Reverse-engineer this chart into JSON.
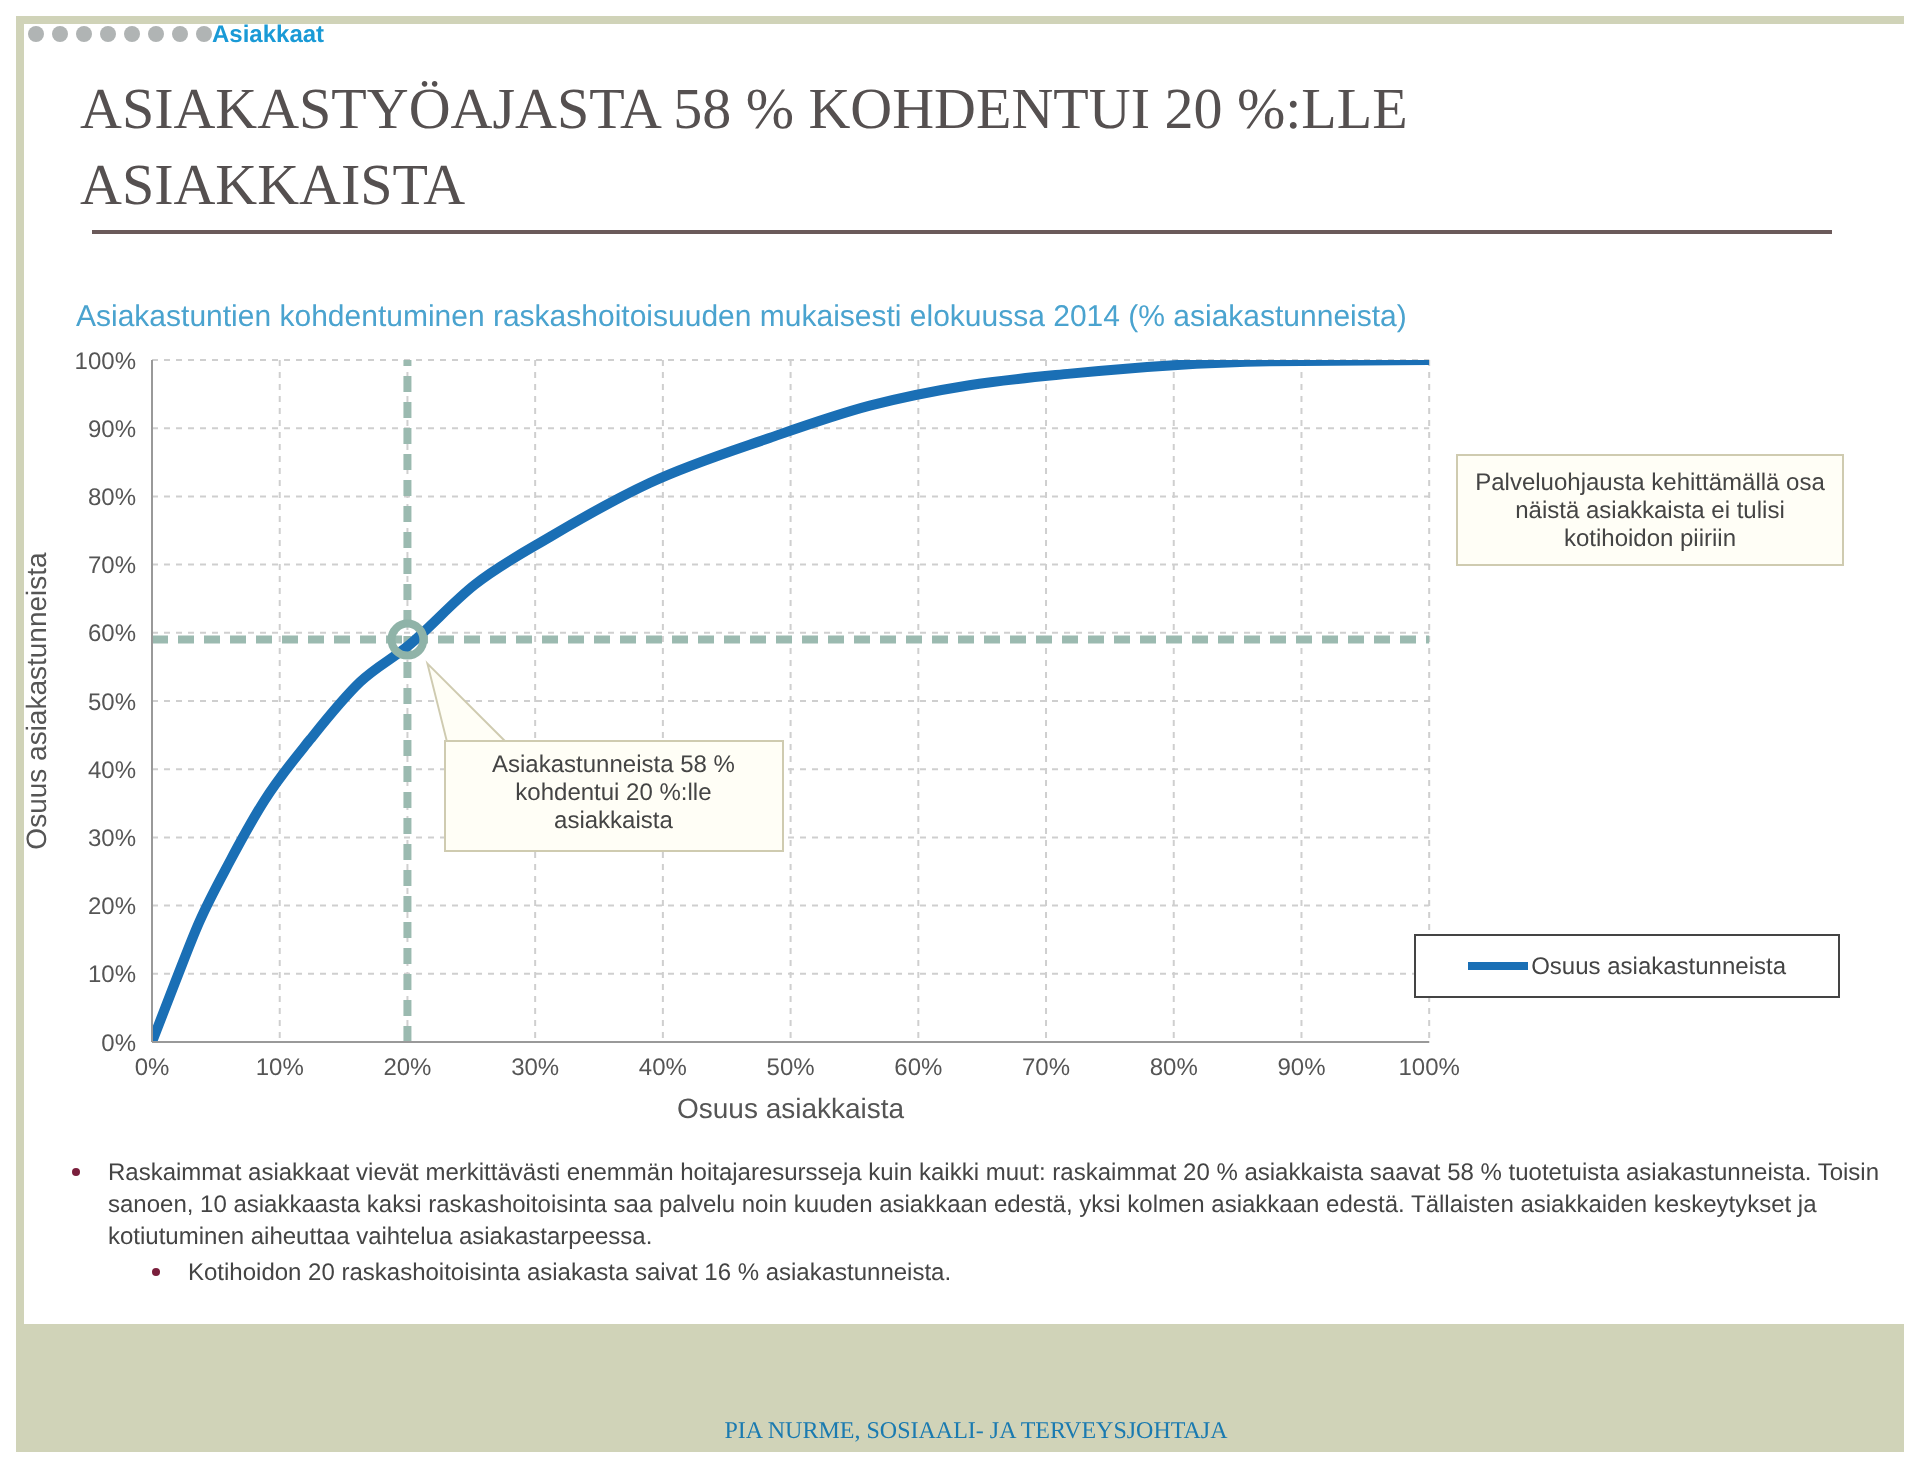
{
  "chart_data": {
    "type": "line",
    "title": "ASIAKASTYÖAJASTA 58 % KOHDENTUI 20 %:LLE ASIAKKAISTA",
    "subtitle": "Asiakastuntien kohdentuminen raskashoitoisuuden mukaisesti elokuussa 2014 (% asiakastunneista)",
    "xlabel": "Osuus asiakkaista",
    "ylabel": "Osuus asiakastunneista",
    "x": [
      0,
      1.8,
      3.7,
      6.1,
      8.8,
      12.4,
      16.3,
      20,
      25.3,
      31.2,
      39,
      48.4,
      56.2,
      64,
      71.9,
      79.7,
      87.5,
      100
    ],
    "series": [
      {
        "name": "Osuus asiakastunneista",
        "color": "#1a6fb5",
        "values": [
          0,
          8.7,
          17.6,
          26.5,
          35.4,
          44.4,
          52.8,
          58,
          67.1,
          74.1,
          82,
          88.6,
          93.3,
          96.3,
          98,
          99.2,
          99.8,
          100
        ]
      }
    ],
    "xlim": [
      0,
      100
    ],
    "ylim": [
      0,
      100
    ],
    "xticks": [
      {
        "value": 0,
        "label": "0%"
      },
      {
        "value": 10,
        "label": "10%"
      },
      {
        "value": 20,
        "label": "20%"
      },
      {
        "value": 30,
        "label": "30%"
      },
      {
        "value": 40,
        "label": "40%"
      },
      {
        "value": 50,
        "label": "50%"
      },
      {
        "value": 60,
        "label": "60%"
      },
      {
        "value": 70,
        "label": "70%"
      },
      {
        "value": 80,
        "label": "80%"
      },
      {
        "value": 90,
        "label": "90%"
      },
      {
        "value": 100,
        "label": "100%"
      }
    ],
    "yticks": [
      {
        "value": 0,
        "label": "0%"
      },
      {
        "value": 10,
        "label": "10%"
      },
      {
        "value": 20,
        "label": "20%"
      },
      {
        "value": 30,
        "label": "30%"
      },
      {
        "value": 40,
        "label": "40%"
      },
      {
        "value": 50,
        "label": "50%"
      },
      {
        "value": 60,
        "label": "60%"
      },
      {
        "value": 70,
        "label": "70%"
      },
      {
        "value": 80,
        "label": "80%"
      },
      {
        "value": 90,
        "label": "90%"
      },
      {
        "value": 100,
        "label": "100%"
      }
    ],
    "ref_lines": [
      {
        "axis": "x",
        "value": 20,
        "color": "#9bbab0",
        "line_style": "dashed"
      },
      {
        "axis": "y",
        "value": 59,
        "color": "#9bbab0",
        "line_style": "dashed"
      }
    ],
    "grid": true,
    "legend": "bottom right",
    "marker": "none",
    "line_style": "solid",
    "annotations": [
      "Asiakkaat",
      "Asiakastunneista 58 % kohdentui 20 %:lle asiakkaista",
      "Palveluohjausta kehittämällä osa näistä asiakkaista ei tulisi kotihoidon piiriin",
      "Raskaimmat asiakkaat vievät merkittävästi enemmän hoitajaresursseja kuin kaikki muut: raskaimmat 20 % asiakkaista saavat 58 % tuotetuista asiakastunneista. Toisin sanoen, 10 asiakkaasta kaksi raskashoitoisinta saa palvelu noin kuuden asiakkaan edestä, yksi kolmen asiakkaan edestä. Tällaisten asiakkaiden keskeytykset ja kotiutuminen aiheuttaa vaihtelua asiakastarpeessa.",
      "Kotihoidon 20 raskashoitoisinta asiakasta saivat 16 % asiakastunneista.",
      "PIA NURME, SOSIAALI- JA TERVEYSJOHTAJA"
    ]
  }
}
